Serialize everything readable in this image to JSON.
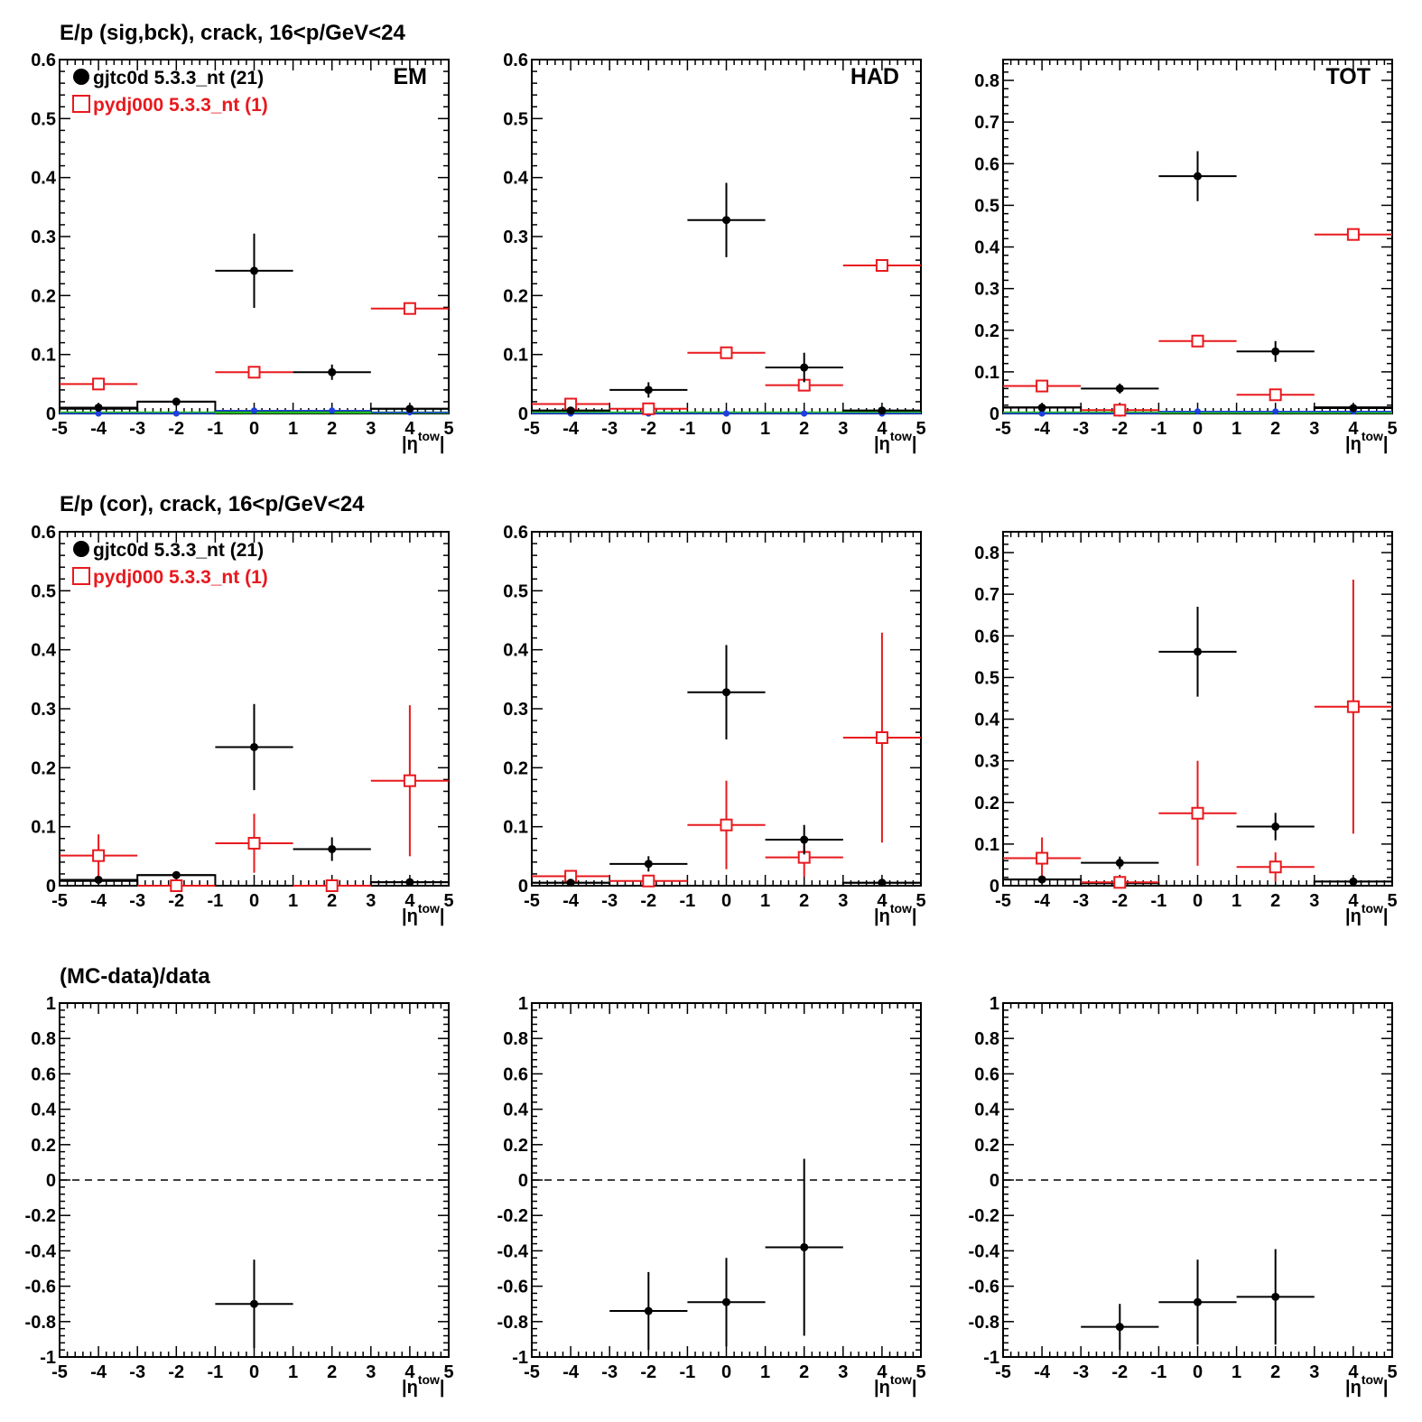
{
  "colors": {
    "data": "#000000",
    "mc": "#e8191e",
    "blue": "#1f3fe0",
    "green": "#22c022",
    "axis": "#000000"
  },
  "row_titles": [
    "E/p (sig,bck), crack, 16<p/GeV<24",
    "E/p (cor), crack, 16<p/GeV<24",
    "(MC-data)/data"
  ],
  "legend": {
    "data_label": "gjtc0d 5.3.3_nt (21)",
    "mc_label": "pydj000 5.3.3_nt (1)"
  },
  "x_axis": {
    "label_main": "|η",
    "label_sup": "tow",
    "label_end": "|",
    "ticks": [
      "-5",
      "-4",
      "-3",
      "-2",
      "-1",
      "0",
      "1",
      "2",
      "3",
      "4",
      "5"
    ]
  },
  "chart_data": [
    {
      "type": "scatter",
      "row": 0,
      "col": 0,
      "tag": "EM",
      "legend": true,
      "xlim": [
        -5,
        5
      ],
      "ylim": [
        0,
        0.6
      ],
      "yticks": [
        0,
        0.1,
        0.2,
        0.3,
        0.4,
        0.5,
        0.6
      ],
      "ytick_labels": [
        "0",
        "0.1",
        "0.2",
        "0.3",
        "0.4",
        "0.5",
        "0.6"
      ],
      "hist": [
        {
          "x0": -5,
          "x1": -3,
          "y": 0.008
        },
        {
          "x0": -3,
          "x1": -1,
          "y": 0.02
        },
        {
          "x0": -1,
          "x1": 1,
          "y": 0.003
        },
        {
          "x0": 1,
          "x1": 3,
          "y": 0.003
        },
        {
          "x0": 3,
          "x1": 5,
          "y": 0.008
        }
      ],
      "data": [
        {
          "x": -4,
          "y": 0.01,
          "ey": 0
        },
        {
          "x": -2,
          "y": 0.02,
          "ey": 0
        },
        {
          "x": 0,
          "y": 0.242,
          "ey": 0.063
        },
        {
          "x": 2,
          "y": 0.07,
          "ey": 0.013
        },
        {
          "x": 4,
          "y": 0.008,
          "ey": 0
        }
      ],
      "mc": [
        {
          "x": -4,
          "y": 0.05,
          "ey": 0
        },
        {
          "x": 0,
          "y": 0.07,
          "ey": 0
        },
        {
          "x": 4,
          "y": 0.178,
          "ey": 0
        }
      ],
      "blue": [
        {
          "x": -4,
          "y": 0.0,
          "ey": 0
        },
        {
          "x": -2,
          "y": 0.0,
          "ey": 0
        },
        {
          "x": 0,
          "y": 0.005,
          "ey": 0
        },
        {
          "x": 2,
          "y": 0.005,
          "ey": 0
        },
        {
          "x": 4,
          "y": 0.002,
          "ey": 0
        }
      ],
      "green": true
    },
    {
      "type": "scatter",
      "row": 0,
      "col": 1,
      "tag": "HAD",
      "legend": false,
      "xlim": [
        -5,
        5
      ],
      "ylim": [
        0,
        0.6
      ],
      "yticks": [
        0,
        0.1,
        0.2,
        0.3,
        0.4,
        0.5,
        0.6
      ],
      "ytick_labels": [
        "0",
        "0.1",
        "0.2",
        "0.3",
        "0.4",
        "0.5",
        "0.6"
      ],
      "hist": [
        {
          "x0": -5,
          "x1": -3,
          "y": 0.005
        },
        {
          "x0": 3,
          "x1": 5,
          "y": 0.005
        }
      ],
      "data": [
        {
          "x": -4,
          "y": 0.005,
          "ey": 0
        },
        {
          "x": -2,
          "y": 0.04,
          "ey": 0.013
        },
        {
          "x": 0,
          "y": 0.328,
          "ey": 0.063
        },
        {
          "x": 2,
          "y": 0.078,
          "ey": 0.025
        },
        {
          "x": 4,
          "y": 0.005,
          "ey": 0
        }
      ],
      "mc": [
        {
          "x": -4,
          "y": 0.016,
          "ey": 0
        },
        {
          "x": -2,
          "y": 0.008,
          "ey": 0
        },
        {
          "x": 0,
          "y": 0.103,
          "ey": 0
        },
        {
          "x": 2,
          "y": 0.048,
          "ey": 0
        },
        {
          "x": 4,
          "y": 0.251,
          "ey": 0
        }
      ],
      "blue": [
        {
          "x": -4,
          "y": 0.0,
          "ey": 0
        },
        {
          "x": -2,
          "y": 0.0,
          "ey": 0
        },
        {
          "x": 0,
          "y": 0.0,
          "ey": 0
        },
        {
          "x": 2,
          "y": 0.0,
          "ey": 0
        },
        {
          "x": 4,
          "y": 0.0,
          "ey": 0
        }
      ],
      "green": true
    },
    {
      "type": "scatter",
      "row": 0,
      "col": 2,
      "tag": "TOT",
      "legend": false,
      "xlim": [
        -5,
        5
      ],
      "ylim": [
        0,
        0.85
      ],
      "yticks": [
        0,
        0.1,
        0.2,
        0.3,
        0.4,
        0.5,
        0.6,
        0.7,
        0.8
      ],
      "ytick_labels": [
        "0",
        "0.1",
        "0.2",
        "0.3",
        "0.4",
        "0.5",
        "0.6",
        "0.7",
        "0.8"
      ],
      "hist": [
        {
          "x0": -5,
          "x1": -3,
          "y": 0.015
        },
        {
          "x0": 3,
          "x1": 5,
          "y": 0.015
        }
      ],
      "data": [
        {
          "x": -4,
          "y": 0.014,
          "ey": 0
        },
        {
          "x": -2,
          "y": 0.06,
          "ey": 0.012
        },
        {
          "x": 0,
          "y": 0.57,
          "ey": 0.06
        },
        {
          "x": 2,
          "y": 0.149,
          "ey": 0.025
        },
        {
          "x": 4,
          "y": 0.013,
          "ey": 0
        }
      ],
      "mc": [
        {
          "x": -4,
          "y": 0.066,
          "ey": 0
        },
        {
          "x": -2,
          "y": 0.008,
          "ey": 0
        },
        {
          "x": 0,
          "y": 0.174,
          "ey": 0
        },
        {
          "x": 2,
          "y": 0.045,
          "ey": 0
        },
        {
          "x": 4,
          "y": 0.43,
          "ey": 0
        }
      ],
      "blue": [
        {
          "x": -4,
          "y": 0.0,
          "ey": 0
        },
        {
          "x": -2,
          "y": 0.0,
          "ey": 0
        },
        {
          "x": 0,
          "y": 0.005,
          "ey": 0
        },
        {
          "x": 2,
          "y": 0.005,
          "ey": 0
        },
        {
          "x": 4,
          "y": 0.005,
          "ey": 0
        }
      ],
      "green": true
    },
    {
      "type": "scatter",
      "row": 1,
      "col": 0,
      "tag": "",
      "legend": true,
      "xlim": [
        -5,
        5
      ],
      "ylim": [
        0,
        0.6
      ],
      "yticks": [
        0,
        0.1,
        0.2,
        0.3,
        0.4,
        0.5,
        0.6
      ],
      "ytick_labels": [
        "0",
        "0.1",
        "0.2",
        "0.3",
        "0.4",
        "0.5",
        "0.6"
      ],
      "hist": [
        {
          "x0": -5,
          "x1": -3,
          "y": 0.008
        },
        {
          "x0": -3,
          "x1": -1,
          "y": 0.018
        },
        {
          "x0": 3,
          "x1": 5,
          "y": 0.006
        }
      ],
      "data": [
        {
          "x": -4,
          "y": 0.01,
          "ey": 0
        },
        {
          "x": -2,
          "y": 0.018,
          "ey": 0
        },
        {
          "x": 0,
          "y": 0.235,
          "ey": 0.073
        },
        {
          "x": 2,
          "y": 0.062,
          "ey": 0.02
        },
        {
          "x": 4,
          "y": 0.006,
          "ey": 0
        }
      ],
      "mc": [
        {
          "x": -4,
          "y": 0.051,
          "ey": 0.036
        },
        {
          "x": -2,
          "y": 0.0,
          "ey": 0
        },
        {
          "x": 0,
          "y": 0.072,
          "ey": 0.05
        },
        {
          "x": 2,
          "y": 0.0,
          "ey": 0
        },
        {
          "x": 4,
          "y": 0.178,
          "ey": 0.128
        }
      ],
      "blue": [],
      "green": false
    },
    {
      "type": "scatter",
      "row": 1,
      "col": 1,
      "tag": "",
      "legend": false,
      "xlim": [
        -5,
        5
      ],
      "ylim": [
        0,
        0.6
      ],
      "yticks": [
        0,
        0.1,
        0.2,
        0.3,
        0.4,
        0.5,
        0.6
      ],
      "ytick_labels": [
        "0",
        "0.1",
        "0.2",
        "0.3",
        "0.4",
        "0.5",
        "0.6"
      ],
      "hist": [
        {
          "x0": -5,
          "x1": -3,
          "y": 0.005
        },
        {
          "x0": 3,
          "x1": 5,
          "y": 0.005
        }
      ],
      "data": [
        {
          "x": -4,
          "y": 0.005,
          "ey": 0
        },
        {
          "x": -2,
          "y": 0.037,
          "ey": 0.013
        },
        {
          "x": 0,
          "y": 0.328,
          "ey": 0.08
        },
        {
          "x": 2,
          "y": 0.078,
          "ey": 0.025
        },
        {
          "x": 4,
          "y": 0.005,
          "ey": 0
        }
      ],
      "mc": [
        {
          "x": -4,
          "y": 0.016,
          "ey": 0
        },
        {
          "x": -2,
          "y": 0.008,
          "ey": 0
        },
        {
          "x": 0,
          "y": 0.103,
          "ey": 0.075
        },
        {
          "x": 2,
          "y": 0.048,
          "ey": 0.033
        },
        {
          "x": 4,
          "y": 0.251,
          "ey": 0.178
        }
      ],
      "blue": [],
      "green": false
    },
    {
      "type": "scatter",
      "row": 1,
      "col": 2,
      "tag": "",
      "legend": false,
      "xlim": [
        -5,
        5
      ],
      "ylim": [
        0,
        0.85
      ],
      "yticks": [
        0,
        0.1,
        0.2,
        0.3,
        0.4,
        0.5,
        0.6,
        0.7,
        0.8
      ],
      "ytick_labels": [
        "0",
        "0.1",
        "0.2",
        "0.3",
        "0.4",
        "0.5",
        "0.6",
        "0.7",
        "0.8"
      ],
      "hist": [
        {
          "x0": -5,
          "x1": -3,
          "y": 0.015
        },
        {
          "x0": -3,
          "x1": -1,
          "y": 0.006
        },
        {
          "x0": 3,
          "x1": 5,
          "y": 0.01
        }
      ],
      "data": [
        {
          "x": -4,
          "y": 0.015,
          "ey": 0
        },
        {
          "x": -2,
          "y": 0.055,
          "ey": 0.015
        },
        {
          "x": 0,
          "y": 0.562,
          "ey": 0.108
        },
        {
          "x": 2,
          "y": 0.142,
          "ey": 0.033
        },
        {
          "x": 4,
          "y": 0.01,
          "ey": 0
        }
      ],
      "mc": [
        {
          "x": -4,
          "y": 0.066,
          "ey": 0.05
        },
        {
          "x": -2,
          "y": 0.008,
          "ey": 0
        },
        {
          "x": 0,
          "y": 0.174,
          "ey": 0.126
        },
        {
          "x": 2,
          "y": 0.045,
          "ey": 0.035
        },
        {
          "x": 4,
          "y": 0.43,
          "ey": 0.305
        }
      ],
      "blue": [],
      "green": false
    },
    {
      "type": "scatter",
      "row": 2,
      "col": 0,
      "tag": "",
      "legend": false,
      "xlim": [
        -5,
        5
      ],
      "ylim": [
        -1,
        1
      ],
      "yticks": [
        -1,
        -0.8,
        -0.6,
        -0.4,
        -0.2,
        0,
        0.2,
        0.4,
        0.6,
        0.8,
        1
      ],
      "ytick_labels": [
        "-1",
        "-0.8",
        "-0.6",
        "-0.4",
        "-0.2",
        "0",
        "0.2",
        "0.4",
        "0.6",
        "0.8",
        "1"
      ],
      "hist": [],
      "zero_line": true,
      "data": [
        {
          "x": 0,
          "y": -0.7,
          "ey": 0.25
        }
      ],
      "mc": [],
      "blue": [],
      "green": false
    },
    {
      "type": "scatter",
      "row": 2,
      "col": 1,
      "tag": "",
      "legend": false,
      "xlim": [
        -5,
        5
      ],
      "ylim": [
        -1,
        1
      ],
      "yticks": [
        -1,
        -0.8,
        -0.6,
        -0.4,
        -0.2,
        0,
        0.2,
        0.4,
        0.6,
        0.8,
        1
      ],
      "ytick_labels": [
        "-1",
        "-0.8",
        "-0.6",
        "-0.4",
        "-0.2",
        "0",
        "0.2",
        "0.4",
        "0.6",
        "0.8",
        "1"
      ],
      "hist": [],
      "zero_line": true,
      "data": [
        {
          "x": -2,
          "y": -0.74,
          "ey": 0.22
        },
        {
          "x": 0,
          "y": -0.69,
          "ey": 0.25
        },
        {
          "x": 2,
          "y": -0.38,
          "ey": 0.5
        }
      ],
      "mc": [],
      "blue": [],
      "green": false
    },
    {
      "type": "scatter",
      "row": 2,
      "col": 2,
      "tag": "",
      "legend": false,
      "xlim": [
        -5,
        5
      ],
      "ylim": [
        -1,
        1
      ],
      "yticks": [
        -1,
        -0.8,
        -0.6,
        -0.4,
        -0.2,
        0,
        0.2,
        0.4,
        0.6,
        0.8,
        1
      ],
      "ytick_labels": [
        "-1",
        "-0.8",
        "-0.6",
        "-0.4",
        "-0.2",
        "0",
        "0.2",
        "0.4",
        "0.6",
        "0.8",
        "1"
      ],
      "hist": [],
      "zero_line": true,
      "data": [
        {
          "x": -2,
          "y": -0.83,
          "ey": 0.13
        },
        {
          "x": 0,
          "y": -0.69,
          "ey": 0.24
        },
        {
          "x": 2,
          "y": -0.66,
          "ey": 0.27
        }
      ],
      "mc": [],
      "blue": [],
      "green": false
    }
  ]
}
